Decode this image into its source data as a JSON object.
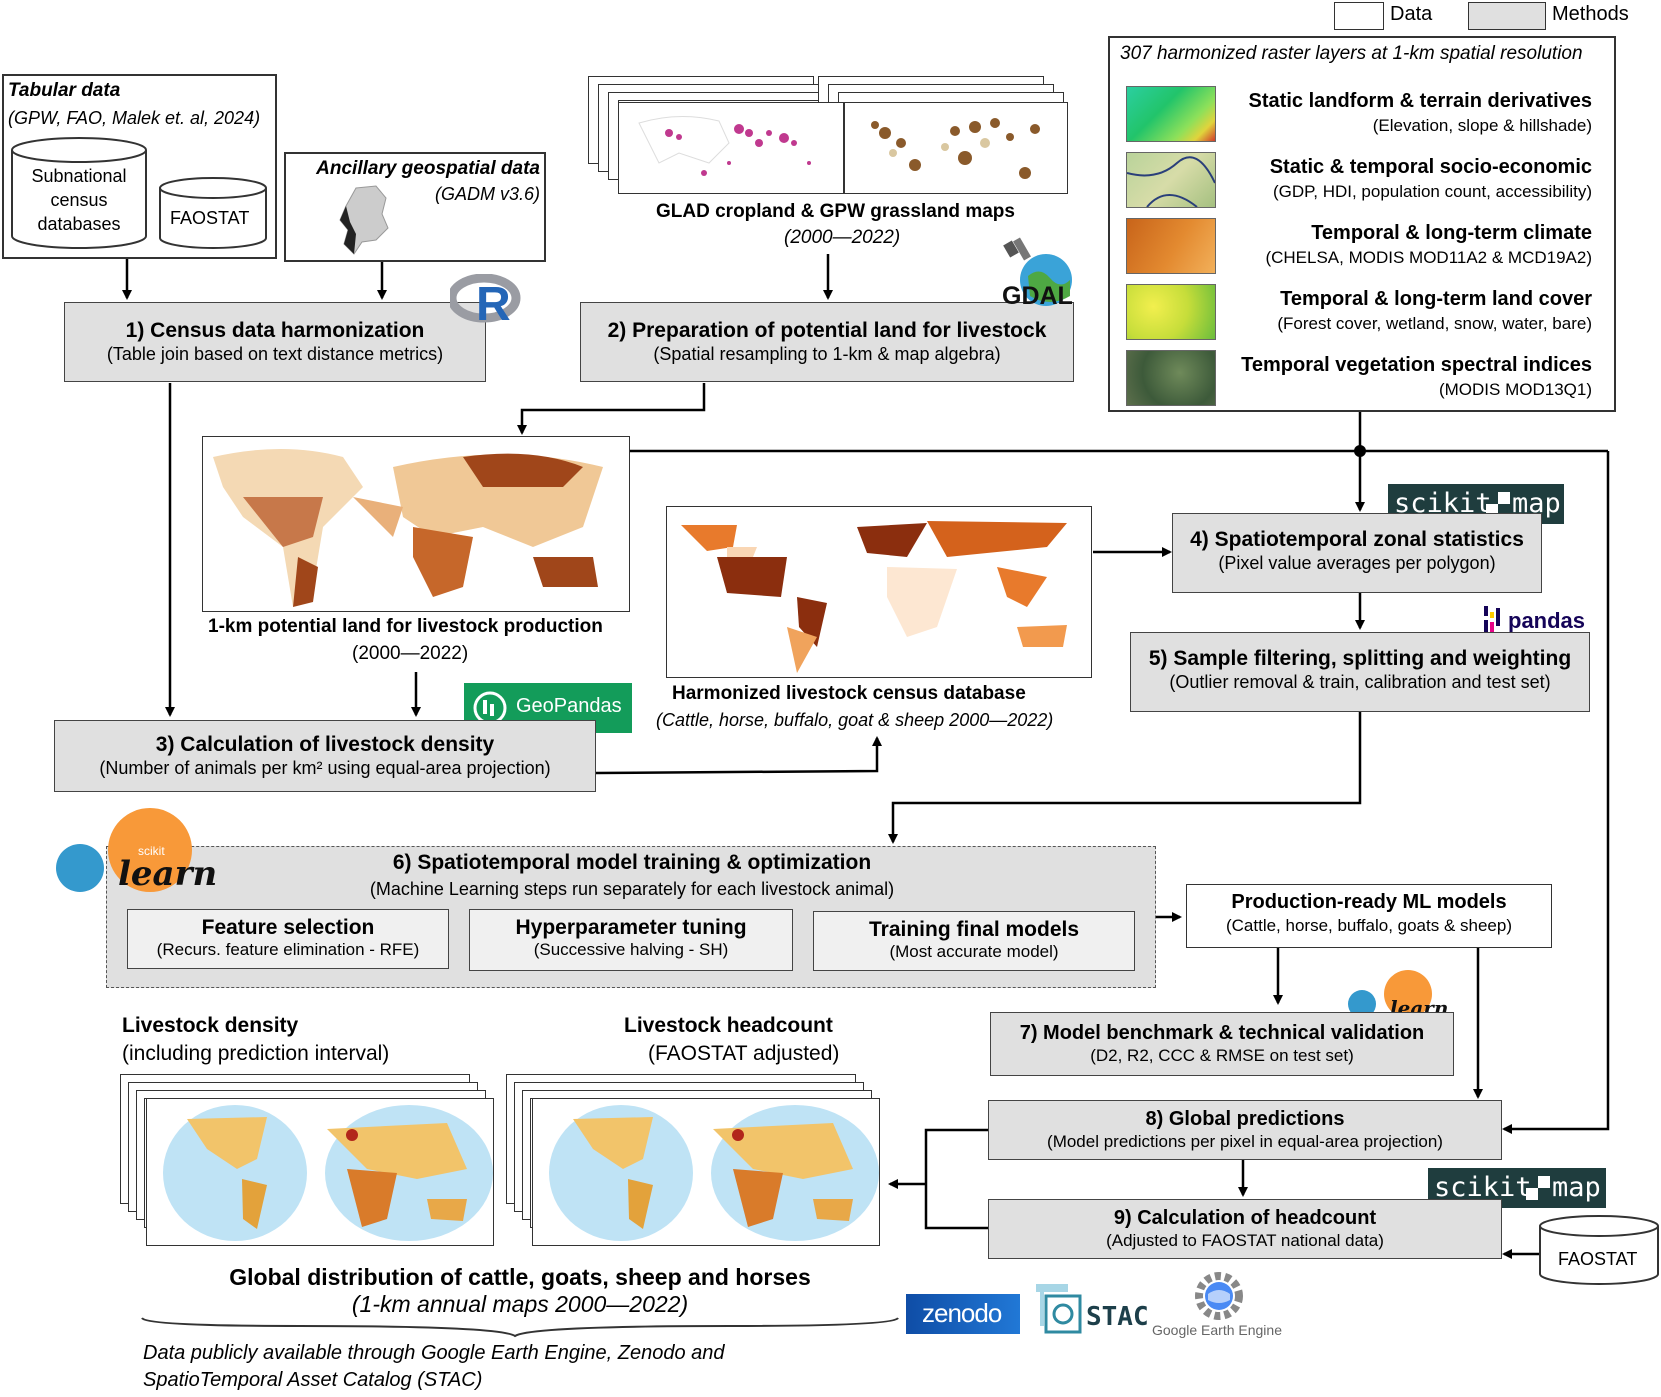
{
  "legend": {
    "data_label": "Data",
    "methods_label": "Methods"
  },
  "tabular": {
    "title": "Tabular data",
    "sources": "(GPW, FAO, Malek et. al, 2024)",
    "db1": [
      "Subnational",
      "census",
      "databases"
    ],
    "db2": "FAOSTAT"
  },
  "ancillary": {
    "title": "Ancillary geospatial data",
    "source": "(GADM v3.6)"
  },
  "glad": {
    "title": "GLAD cropland & GPW grassland maps",
    "years": "(2000—2022)"
  },
  "raster": {
    "title": "307 harmonized raster layers at 1-km spatial resolution",
    "layers": [
      {
        "name": "Static landform & terrain derivatives",
        "detail": "(Elevation, slope & hillshade)"
      },
      {
        "name": "Static & temporal socio-economic",
        "detail": "(GDP, HDI, population count, accessibility)"
      },
      {
        "name": "Temporal & long-term climate",
        "detail": "(CHELSA, MODIS MOD11A2 & MCD19A2)"
      },
      {
        "name": "Temporal & long-term land cover",
        "detail": "(Forest cover, wetland, snow, water, bare)"
      },
      {
        "name": "Temporal vegetation spectral indices",
        "detail": "(MODIS MOD13Q1)"
      }
    ]
  },
  "steps": {
    "s1": {
      "title": "1) Census data harmonization",
      "sub": "(Table join based on text distance metrics)"
    },
    "s2": {
      "title": "2) Preparation of potential land for livestock",
      "sub": "(Spatial resampling to 1-km & map algebra)"
    },
    "s3": {
      "title": "3) Calculation of livestock density",
      "sub": "(Number of animals per km² using equal-area projection)"
    },
    "s4": {
      "title": "4) Spatiotemporal zonal statistics",
      "sub": "(Pixel value averages per polygon)"
    },
    "s5": {
      "title": "5) Sample filtering, splitting and weighting",
      "sub": "(Outlier removal & train, calibration and test set)"
    },
    "s6": {
      "title": "6) Spatiotemporal model training & optimization",
      "sub": "(Machine Learning steps run separately for each livestock animal)",
      "sub_steps": [
        {
          "title": "Feature selection",
          "sub": "(Recurs. feature elimination - RFE)"
        },
        {
          "title": "Hyperparameter tuning",
          "sub": "(Successive halving - SH)"
        },
        {
          "title": "Training final models",
          "sub": "(Most accurate model)"
        }
      ]
    },
    "s7": {
      "title": "7) Model benchmark & technical validation",
      "sub": "(D2, R2, CCC & RMSE on test set)"
    },
    "s8": {
      "title": "8) Global predictions",
      "sub": "(Model predictions per pixel in equal-area projection)"
    },
    "s9": {
      "title": "9) Calculation of headcount",
      "sub": "(Adjusted to FAOSTAT national data)"
    }
  },
  "potential_land": {
    "title": "1-km potential land for livestock production",
    "years": "(2000—2022)"
  },
  "census_db": {
    "title": "Harmonized livestock census database",
    "sub": "(Cattle, horse, buffalo, goat & sheep 2000—2022)"
  },
  "ml_models": {
    "title": "Production-ready ML models",
    "sub": "(Cattle, horse, buffalo, goats & sheep)"
  },
  "outputs": {
    "density_title": "Livestock density",
    "density_sub": "(including prediction interval)",
    "headcount_title": "Livestock headcount",
    "headcount_sub": "(FAOSTAT adjusted)",
    "global_title": "Global distribution of cattle, goats, sheep and horses",
    "global_sub": "(1-km annual maps 2000—2022)",
    "availability": [
      "Data publicly available through Google Earth Engine, Zenodo and",
      "SpatioTemporal Asset Catalog (STAC)"
    ],
    "faostat": "FAOSTAT"
  },
  "logos": {
    "r": "R",
    "gdal": "GDAL",
    "scikit_map": [
      "scikit",
      "map"
    ],
    "pandas": "pandas",
    "geopandas": "GeoPandas",
    "sklearn_small": "scikit",
    "sklearn": "learn",
    "zenodo": "zenodo",
    "stac": "STAC",
    "gee": "Google Earth Engine"
  },
  "colors": {
    "method_fill": "#e0e0e0",
    "map_brown": "#a0461a",
    "map_orange": "#e07a2c",
    "ocean": "#bfe3f5",
    "sklearn_orange": "#f89939",
    "sklearn_blue": "#3499cd",
    "scikit_map_bg": "#1f3d3e",
    "zenodo_blue": "#1f6ac5",
    "geopandas_green": "#139c5a"
  }
}
